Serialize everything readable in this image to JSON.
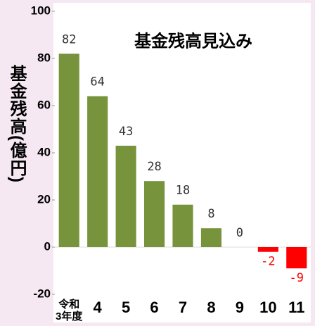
{
  "chart_data": {
    "type": "bar",
    "title": "基金残高見込み",
    "y_label": "基金残高(億円)",
    "categories": [
      "令和\n3年度",
      "4",
      "5",
      "6",
      "7",
      "8",
      "9",
      "10",
      "11"
    ],
    "values": [
      82,
      64,
      43,
      28,
      18,
      8,
      0,
      -2,
      -9
    ],
    "color": "#77933c",
    "negative_color": "#ff0000",
    "ylim": [
      -20,
      100
    ],
    "yticks": [
      -20,
      0,
      20,
      40,
      60,
      80,
      100
    ]
  }
}
